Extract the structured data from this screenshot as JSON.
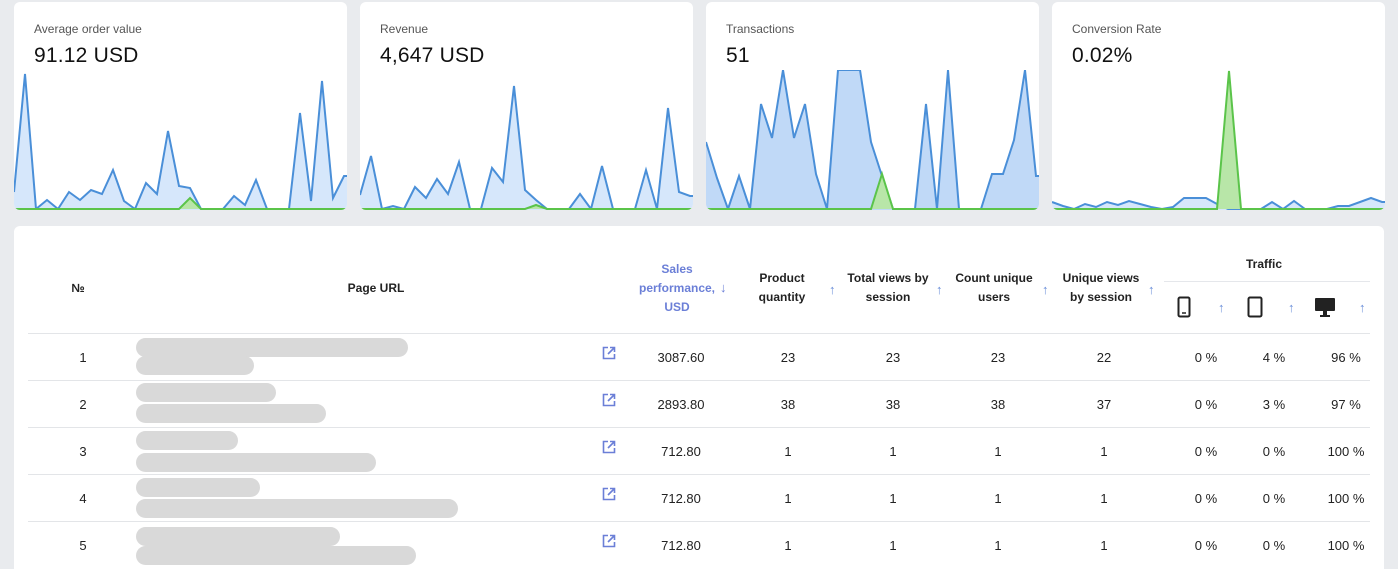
{
  "cards": [
    {
      "label": "Average order value",
      "value": "91.12 USD"
    },
    {
      "label": "Revenue",
      "value": "4,647 USD"
    },
    {
      "label": "Transactions",
      "value": "51"
    },
    {
      "label": "Conversion Rate",
      "value": "0.02%"
    }
  ],
  "colors": {
    "line": "#4a8fd8",
    "fill": "#cfe3fb",
    "green": "#5bc44a",
    "accent": "#6b7fd7"
  },
  "table": {
    "headers": {
      "num": "№",
      "url": "Page URL",
      "sales": "Sales performance, USD",
      "product": "Product quantity",
      "total_views": "Total views by session",
      "unique_users": "Count unique users",
      "unique_views": "Unique views by session",
      "traffic": "Traffic"
    },
    "device_icons": [
      "mobile-icon",
      "tablet-icon",
      "desktop-icon"
    ],
    "rows": [
      {
        "num": "1",
        "sales": "3087.60",
        "product": "23",
        "total": "23",
        "users": "23",
        "unique": "22",
        "mobile": "0 %",
        "tablet": "4 %",
        "desktop": "96 %"
      },
      {
        "num": "2",
        "sales": "2893.80",
        "product": "38",
        "total": "38",
        "users": "38",
        "unique": "37",
        "mobile": "0 %",
        "tablet": "3 %",
        "desktop": "97 %"
      },
      {
        "num": "3",
        "sales": "712.80",
        "product": "1",
        "total": "1",
        "users": "1",
        "unique": "1",
        "mobile": "0 %",
        "tablet": "0 %",
        "desktop": "100 %"
      },
      {
        "num": "4",
        "sales": "712.80",
        "product": "1",
        "total": "1",
        "users": "1",
        "unique": "1",
        "mobile": "0 %",
        "tablet": "0 %",
        "desktop": "100 %"
      },
      {
        "num": "5",
        "sales": "712.80",
        "product": "1",
        "total": "1",
        "users": "1",
        "unique": "1",
        "mobile": "0 %",
        "tablet": "0 %",
        "desktop": "100 %"
      }
    ]
  }
}
